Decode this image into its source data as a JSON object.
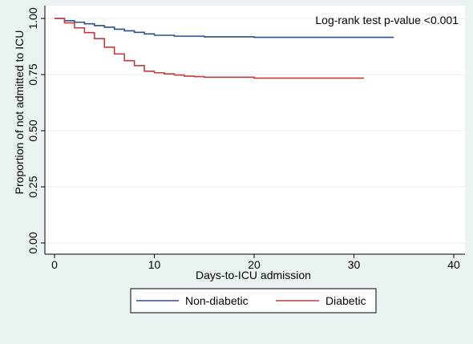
{
  "chart_data": {
    "type": "line",
    "title": "",
    "xlabel": "Days-to-ICU admission",
    "ylabel": "Proportion of not admitted to ICU",
    "xlim": [
      0,
      40
    ],
    "ylim": [
      0,
      1
    ],
    "xticks": [
      "0",
      "10",
      "20",
      "30",
      "40"
    ],
    "yticks": [
      "0.00",
      "0.25",
      "0.50",
      "0.75",
      "1.00"
    ],
    "grid": true,
    "legend_position": "bottom",
    "annotation": "Log-rank test p-value <0.001",
    "series": [
      {
        "name": "Non-diabetic",
        "color": "#2b4f8d",
        "step": true,
        "x": [
          0,
          1,
          2,
          3,
          4,
          5,
          6,
          7,
          8,
          9,
          10,
          12,
          15,
          20,
          34
        ],
        "y": [
          1.0,
          0.99,
          0.983,
          0.976,
          0.968,
          0.961,
          0.952,
          0.945,
          0.938,
          0.931,
          0.925,
          0.921,
          0.918,
          0.916,
          0.916
        ]
      },
      {
        "name": "Diabetic",
        "color": "#c33c3c",
        "step": true,
        "x": [
          0,
          1,
          2,
          3,
          4,
          5,
          6,
          7,
          8,
          9,
          10,
          11,
          12,
          13,
          14,
          15,
          20,
          31
        ],
        "y": [
          1.0,
          0.98,
          0.958,
          0.937,
          0.91,
          0.872,
          0.842,
          0.812,
          0.79,
          0.765,
          0.758,
          0.753,
          0.748,
          0.743,
          0.741,
          0.738,
          0.734,
          0.734
        ]
      }
    ]
  }
}
